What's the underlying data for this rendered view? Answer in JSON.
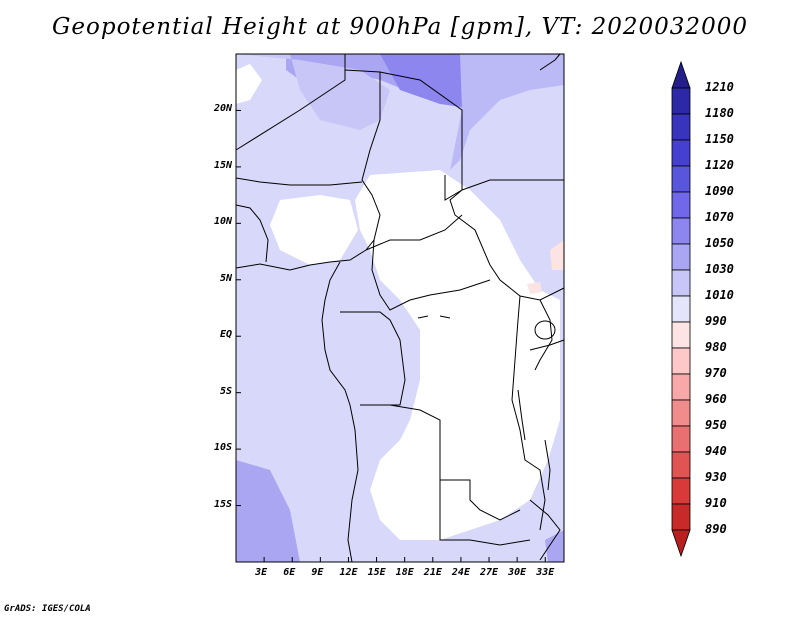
{
  "title": "Geopotential Height at 900hPa [gpm], VT: 2020032000",
  "credit": "GrADS: IGES/COLA",
  "map": {
    "lon_range": [
      0,
      35
    ],
    "lat_range": [
      -20,
      25
    ],
    "lon_ticks": [
      "3E",
      "6E",
      "9E",
      "12E",
      "15E",
      "18E",
      "21E",
      "24E",
      "27E",
      "30E",
      "33E"
    ],
    "lat_ticks": [
      "20N",
      "15N",
      "10N",
      "5N",
      "EQ",
      "5S",
      "10S",
      "15S"
    ]
  },
  "colorbar": {
    "levels": [
      "1210",
      "1180",
      "1150",
      "1120",
      "1090",
      "1070",
      "1050",
      "1030",
      "1010",
      "990",
      "980",
      "970",
      "960",
      "950",
      "940",
      "930",
      "910",
      "890"
    ],
    "colors": [
      "#241e8c",
      "#2c28a6",
      "#3834bc",
      "#4640d0",
      "#5a56dc",
      "#7068e8",
      "#8c86ee",
      "#aaa6f2",
      "#c8c6f6",
      "#e4e4fa",
      "#fde4e4",
      "#fcc8c8",
      "#f8a8a8",
      "#f08c8c",
      "#e87070",
      "#e05454",
      "#d83a3a",
      "#c82a2a",
      "#b82020"
    ]
  }
}
